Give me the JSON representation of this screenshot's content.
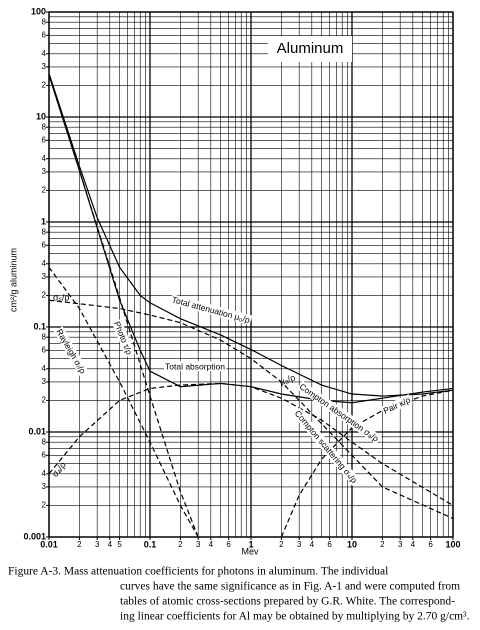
{
  "chart_data": {
    "type": "line",
    "title": "Aluminum",
    "xlabel": "Mev",
    "ylabel": "cm²/g aluminum",
    "xscale": "log",
    "yscale": "log",
    "grid": true,
    "xlim": [
      0.01,
      100
    ],
    "ylim": [
      0.001,
      100
    ],
    "xticks": [
      0.01,
      {
        "value": 0.02,
        "label": "2"
      },
      {
        "value": 0.03,
        "label": "3"
      },
      {
        "value": 0.04,
        "label": "4"
      },
      {
        "value": 0.05,
        "label": "5"
      },
      0.1,
      {
        "value": 0.2,
        "label": "2"
      },
      {
        "value": 0.3,
        "label": "3"
      },
      {
        "value": 0.4,
        "label": "4"
      },
      {
        "value": 0.6,
        "label": "6"
      },
      1,
      {
        "value": 2,
        "label": "2"
      },
      {
        "value": 3,
        "label": "3"
      },
      {
        "value": 4,
        "label": "4"
      },
      {
        "value": 6,
        "label": "6"
      },
      10,
      {
        "value": 20,
        "label": "2"
      },
      {
        "value": 30,
        "label": "3"
      },
      {
        "value": 40,
        "label": "4"
      },
      {
        "value": 60,
        "label": "6"
      },
      100
    ],
    "yticks": [
      0.001,
      {
        "value": 0.002,
        "label": "2"
      },
      {
        "value": 0.003,
        "label": "3"
      },
      {
        "value": 0.004,
        "label": "4"
      },
      {
        "value": 0.006,
        "label": "6"
      },
      {
        "value": 0.008,
        "label": "8"
      },
      0.01,
      {
        "value": 0.02,
        "label": "2"
      },
      {
        "value": 0.03,
        "label": "3"
      },
      {
        "value": 0.04,
        "label": "4"
      },
      {
        "value": 0.06,
        "label": "6"
      },
      {
        "value": 0.08,
        "label": "8"
      },
      0.1,
      {
        "value": 0.2,
        "label": "2"
      },
      {
        "value": 0.3,
        "label": "3"
      },
      {
        "value": 0.4,
        "label": "4"
      },
      {
        "value": 0.6,
        "label": "6"
      },
      {
        "value": 0.8,
        "label": "8"
      },
      1,
      {
        "value": 2,
        "label": "2"
      },
      {
        "value": 3,
        "label": "3"
      },
      {
        "value": 4,
        "label": "4"
      },
      {
        "value": 6,
        "label": "6"
      },
      {
        "value": 8,
        "label": "8"
      },
      10,
      {
        "value": 20,
        "label": "2"
      },
      {
        "value": 30,
        "label": "3"
      },
      {
        "value": 40,
        "label": "4"
      },
      {
        "value": 60,
        "label": "6"
      },
      {
        "value": 80,
        "label": "8"
      },
      100
    ],
    "xgrid": [
      0.01,
      0.02,
      0.03,
      0.04,
      0.05,
      0.06,
      0.07,
      0.08,
      0.09,
      0.1,
      0.2,
      0.3,
      0.4,
      0.5,
      0.6,
      0.7,
      0.8,
      0.9,
      1,
      2,
      3,
      4,
      5,
      6,
      7,
      8,
      9,
      10,
      20,
      30,
      40,
      50,
      60,
      70,
      80,
      90,
      100
    ],
    "ygrid": [
      0.001,
      0.002,
      0.003,
      0.004,
      0.005,
      0.006,
      0.007,
      0.008,
      0.009,
      0.01,
      0.02,
      0.03,
      0.04,
      0.05,
      0.06,
      0.07,
      0.08,
      0.09,
      0.1,
      0.2,
      0.3,
      0.4,
      0.5,
      0.6,
      0.7,
      0.8,
      0.9,
      1,
      2,
      3,
      4,
      5,
      6,
      7,
      8,
      9,
      10,
      20,
      30,
      40,
      50,
      60,
      70,
      80,
      90,
      100
    ],
    "series": [
      {
        "name": "Total attenuation μ₀/ρ",
        "color": "#000000",
        "dashed": false,
        "x": [
          0.01,
          0.02,
          0.03,
          0.05,
          0.08,
          0.1,
          0.2,
          0.5,
          1,
          2,
          5,
          10,
          20,
          50,
          100
        ],
        "values": [
          26,
          3.4,
          1.1,
          0.37,
          0.2,
          0.17,
          0.12,
          0.084,
          0.061,
          0.043,
          0.028,
          0.023,
          0.022,
          0.023,
          0.025
        ]
      },
      {
        "name": "Total absorption",
        "color": "#000000",
        "dashed": false,
        "x": [
          0.01,
          0.02,
          0.03,
          0.05,
          0.08,
          0.1,
          0.2,
          0.5,
          1,
          2,
          5,
          10,
          20,
          50,
          100
        ],
        "values": [
          25,
          3.1,
          0.88,
          0.18,
          0.06,
          0.038,
          0.027,
          0.029,
          0.027,
          0.023,
          0.02,
          0.019,
          0.021,
          0.024,
          0.026
        ]
      },
      {
        "name": "Photo τ/ρ",
        "color": "#000000",
        "dashed": true,
        "x": [
          0.01,
          0.02,
          0.03,
          0.05,
          0.1,
          0.2,
          0.3
        ],
        "values": [
          25,
          3.1,
          0.9,
          0.19,
          0.022,
          0.0027,
          0.001
        ]
      },
      {
        "name": "Rayleigh σᵣ/ρ",
        "color": "#000000",
        "dashed": true,
        "x": [
          0.01,
          0.02,
          0.05,
          0.1,
          0.2,
          0.3
        ],
        "values": [
          0.37,
          0.15,
          0.03,
          0.008,
          0.002,
          0.001
        ]
      },
      {
        "name": "Compton scattering σₛ/ρ",
        "color": "#000000",
        "dashed": true,
        "x": [
          0.01,
          0.05,
          0.1,
          0.2,
          0.5,
          1,
          2,
          5,
          10,
          20,
          100
        ],
        "values": [
          0.18,
          0.15,
          0.13,
          0.11,
          0.075,
          0.05,
          0.03,
          0.012,
          0.006,
          0.003,
          0.0015
        ]
      },
      {
        "name": "Compton absorption σₐ/ρ",
        "color": "#000000",
        "dashed": true,
        "x": [
          0.01,
          0.02,
          0.05,
          0.1,
          0.2,
          0.5,
          1,
          2,
          5,
          10,
          20,
          100
        ],
        "values": [
          0.004,
          0.009,
          0.02,
          0.026,
          0.028,
          0.029,
          0.027,
          0.021,
          0.013,
          0.008,
          0.005,
          0.002
        ]
      },
      {
        "name": "Pair κ/ρ",
        "color": "#000000",
        "dashed": true,
        "x": [
          2,
          3,
          5,
          10,
          20,
          50,
          100
        ],
        "values": [
          0.001,
          0.0025,
          0.0055,
          0.011,
          0.016,
          0.022,
          0.025
        ]
      }
    ],
    "annotations": [
      "σₛ/ρ",
      "σₐ/ρ",
      "μₐ/ρ"
    ],
    "caption": [
      "Figure A-3.  Mass attenuation coefficients for photons in aluminum.  The individual",
      "curves have the same significance as in Fig. A-1 and were computed from",
      "tables of atomic cross-sections prepared by G.R. White.  The correspond-",
      "ing linear coefficients for Al may be obtained by multiplying by 2.70 g/cm³."
    ]
  }
}
